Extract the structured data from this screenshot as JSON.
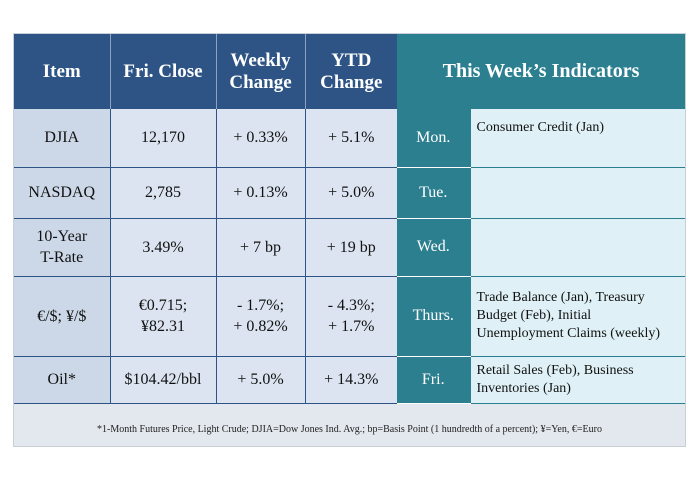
{
  "header": {
    "item": "Item",
    "close": "Fri. Close",
    "weekly_1": "Weekly",
    "weekly_2": "Change",
    "ytd_1": "YTD",
    "ytd_2": "Change",
    "indicators": "This Week’s Indicators"
  },
  "rows": [
    {
      "item": [
        "DJIA"
      ],
      "close": [
        "12,170"
      ],
      "weekly": [
        "+ 0.33%"
      ],
      "ytd": [
        "+ 5.1%"
      ]
    },
    {
      "item": [
        "NASDAQ"
      ],
      "close": [
        "2,785"
      ],
      "weekly": [
        "+ 0.13%"
      ],
      "ytd": [
        "+ 5.0%"
      ]
    },
    {
      "item": [
        "10-Year",
        "T-Rate"
      ],
      "close": [
        "3.49%"
      ],
      "weekly": [
        "+ 7 bp"
      ],
      "ytd": [
        "+ 19 bp"
      ]
    },
    {
      "item": [
        "€/$; ¥/$"
      ],
      "close": [
        "€0.715;",
        "¥82.31"
      ],
      "weekly": [
        "- 1.7%;",
        "+ 0.82%"
      ],
      "ytd": [
        "- 4.3%;",
        "+ 1.7%"
      ]
    },
    {
      "item": [
        "Oil*"
      ],
      "close": [
        "$104.42/bbl"
      ],
      "weekly": [
        "+ 5.0%"
      ],
      "ytd": [
        "+ 14.3%"
      ]
    }
  ],
  "indicators": [
    {
      "day": "Mon.",
      "text": "Consumer Credit (Jan)"
    },
    {
      "day": "Tue.",
      "text": ""
    },
    {
      "day": "Wed.",
      "text": ""
    },
    {
      "day": "Thurs.",
      "text": "Trade Balance (Jan), Treasury Budget (Feb), Initial Unemployment Claims (weekly)"
    },
    {
      "day": "Fri.",
      "text": "Retail Sales (Feb), Business Inventories (Jan)"
    }
  ],
  "footnote": "*1-Month Futures Price, Light Crude; DJIA=Dow Jones Ind. Avg.; bp=Basis Point (1 hundredth of a percent); ¥=Yen, €=Euro",
  "colors": {
    "left_header": "#2e5486",
    "right_header": "#2b7f8f",
    "left_cell": "#dbe4f0",
    "right_cell": "#dff1f6"
  }
}
